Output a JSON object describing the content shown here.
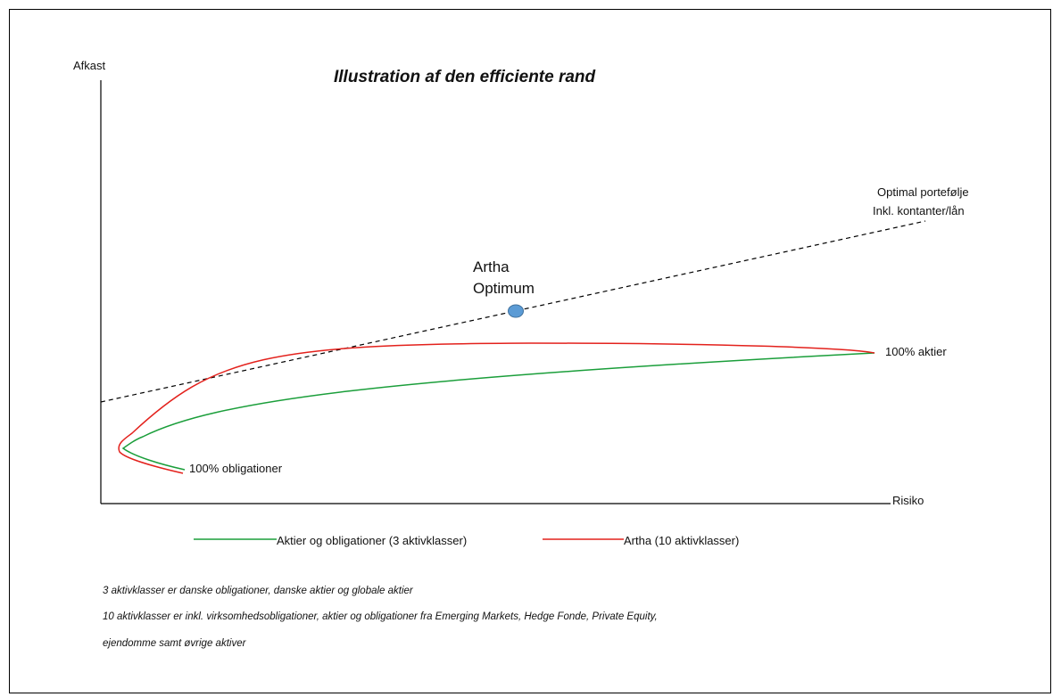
{
  "diagram": {
    "title": "Illustration af den efficiente rand",
    "y_axis_label": "Afkast",
    "x_axis_label": "Risiko",
    "capital_market_line_label": [
      "Optimal portefølje",
      "Inkl. kontanter/lån"
    ],
    "optimum_point_label": [
      "Artha",
      "Optimum"
    ],
    "frontier_end_label": "100% aktier",
    "frontier_start_label": "100% obligationer",
    "colors": {
      "series_3_asset_classes": "#1a9e3a",
      "series_10_asset_classes": "#e3211c",
      "optimum_marker": "#5b9bd5",
      "capital_market_line": "#000000"
    }
  },
  "legend": {
    "items": [
      {
        "label": "Aktier og obligationer (3 aktivklasser)",
        "color": "#1a9e3a"
      },
      {
        "label": "Artha (10 aktivklasser)",
        "color": "#e3211c"
      }
    ]
  },
  "notes": [
    "3 aktivklasser er danske obligationer, danske aktier og globale aktier",
    "10 aktivklasser er inkl. virksomhedsobligationer, aktier og obligationer fra Emerging Markets, Hedge Fonde, Private Equity,",
    "ejendomme samt øvrige aktiver"
  ]
}
